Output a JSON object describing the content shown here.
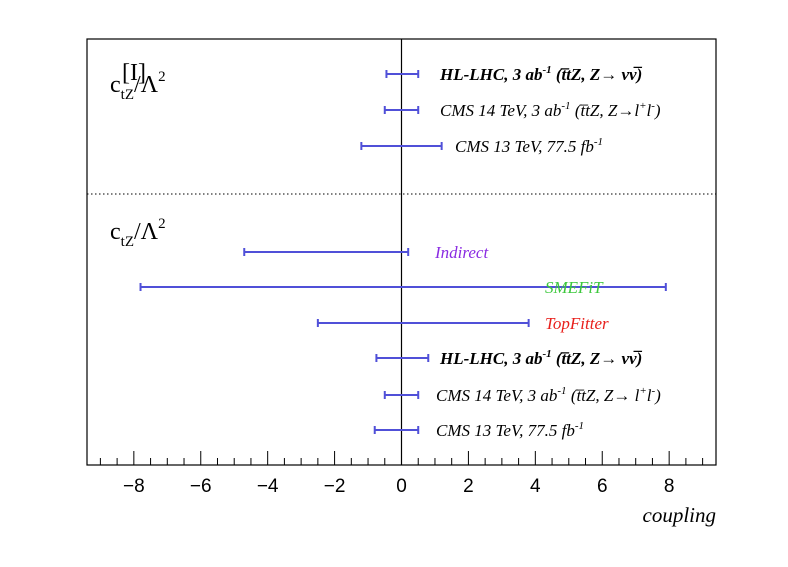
{
  "chart_data": {
    "type": "interval",
    "xlabel": "coupling",
    "xlim": [
      -9.4,
      9.4
    ],
    "xticks": [
      -8,
      -6,
      -4,
      -2,
      0,
      2,
      4,
      6,
      8
    ],
    "xtick_labels": [
      "−8",
      "−6",
      "−4",
      "−2",
      "0",
      "2",
      "4",
      "6",
      "8"
    ],
    "bar_color": "#5050d8",
    "groups": [
      {
        "label_main": "c",
        "label_sub": "tZ",
        "label_sup": "[I]",
        "label_tail": "/Λ",
        "label_tail_sup": "2",
        "entries": [
          {
            "row": 0,
            "low": -0.45,
            "high": 0.5,
            "label_prefix": "HL-LHC, 3 ab",
            "label_prefix_sup": "-1",
            "label_suffix": " (t̅tZ, Z→  νν̅)",
            "bold": true,
            "color": "#000000"
          },
          {
            "row": 1,
            "low": -0.5,
            "high": 0.5,
            "label_prefix": "CMS 14 TeV, 3 ab",
            "label_prefix_sup": "-1",
            "label_suffix": " (t̅tZ, Z→l",
            "label_suffix_sup": "+",
            "label_suffix2": "l",
            "label_suffix2_sup": "-",
            "label_close": ")",
            "bold": false,
            "color": "#000000"
          },
          {
            "row": 2,
            "low": -1.2,
            "high": 1.2,
            "label_prefix": "CMS 13 TeV, 77.5 fb",
            "label_prefix_sup": "-1",
            "bold": false,
            "color": "#000000"
          }
        ]
      },
      {
        "label_main": "c",
        "label_sub": "tZ",
        "label_tail": "/Λ",
        "label_tail_sup": "2",
        "entries": [
          {
            "row": 4,
            "low": -4.7,
            "high": 0.2,
            "label_prefix": "Indirect",
            "bold": false,
            "color": "#8a2be2"
          },
          {
            "row": 5,
            "low": -7.8,
            "high": 7.9,
            "label_prefix": "SMEFiT",
            "bold": false,
            "color": "#3cc83c"
          },
          {
            "row": 6,
            "low": -2.5,
            "high": 3.8,
            "label_prefix": "TopFitter",
            "bold": false,
            "color": "#e8201c"
          },
          {
            "row": 7,
            "low": -0.75,
            "high": 0.8,
            "label_prefix": "HL-LHC, 3 ab",
            "label_prefix_sup": "-1",
            "label_suffix": " (t̅tZ, Z→  νν̅)",
            "bold": true,
            "color": "#000000"
          },
          {
            "row": 8,
            "low": -0.5,
            "high": 0.5,
            "label_prefix": "CMS 14 TeV, 3 ab",
            "label_prefix_sup": "-1",
            "label_suffix": " (t̅tZ, Z→ l",
            "label_suffix_sup": "+",
            "label_suffix2": "l",
            "label_suffix2_sup": "-",
            "label_close": ")",
            "bold": false,
            "color": "#000000"
          },
          {
            "row": 9,
            "low": -0.8,
            "high": 0.5,
            "label_prefix": "CMS 13 TeV, 77.5 fb",
            "label_prefix_sup": "-1",
            "bold": false,
            "color": "#000000"
          }
        ]
      }
    ]
  }
}
